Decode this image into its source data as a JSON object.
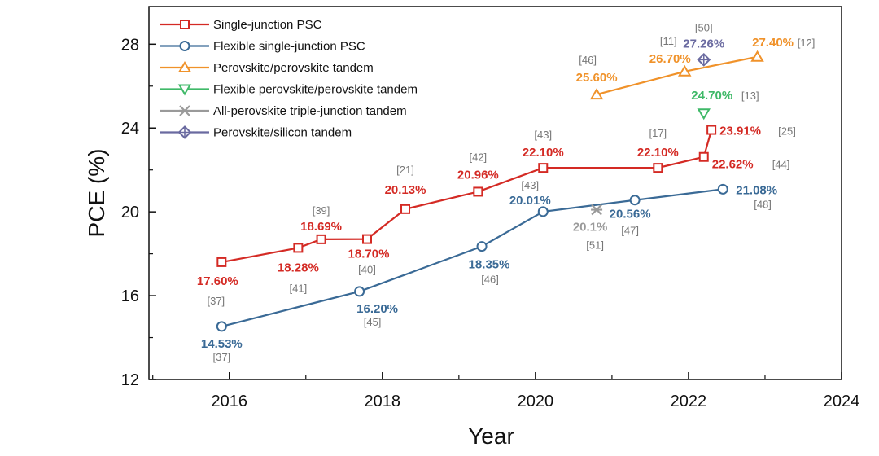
{
  "chart_data": {
    "type": "line",
    "xlabel": "Year",
    "ylabel": "PCE (%)",
    "xlim": [
      2014.95,
      2024
    ],
    "ylim": [
      12,
      29.8
    ],
    "x_ticks": [
      2016,
      2018,
      2020,
      2022,
      2024
    ],
    "x_tick_labels": [
      "2016",
      "2018",
      "2020",
      "2022",
      "2024"
    ],
    "y_ticks": [
      12,
      16,
      20,
      24,
      28
    ],
    "y_tick_labels": [
      "12",
      "16",
      "20",
      "24",
      "28"
    ],
    "legend_position": "top-left",
    "series": [
      {
        "name": "Single-junction PSC",
        "color": "#d42a24",
        "marker": "square",
        "line": true,
        "points": [
          {
            "x": 2015.9,
            "y": 17.6,
            "label": "17.60%",
            "ref": "[37]"
          },
          {
            "x": 2016.9,
            "y": 18.28,
            "label": "18.28%",
            "ref": "[41]"
          },
          {
            "x": 2017.2,
            "y": 18.69,
            "label": "18.69%",
            "ref": "[39]"
          },
          {
            "x": 2017.8,
            "y": 18.7,
            "label": "18.70%",
            "ref": "[40]"
          },
          {
            "x": 2018.3,
            "y": 20.13,
            "label": "20.13%",
            "ref": "[21]"
          },
          {
            "x": 2019.25,
            "y": 20.96,
            "label": "20.96%",
            "ref": "[42]"
          },
          {
            "x": 2020.1,
            "y": 22.1,
            "label": "22.10%",
            "ref": "[43]"
          },
          {
            "x": 2021.6,
            "y": 22.1,
            "label": "22.10%",
            "ref": "[17]"
          },
          {
            "x": 2022.2,
            "y": 22.62,
            "label": "22.62%",
            "ref": "[44]"
          },
          {
            "x": 2022.3,
            "y": 23.91,
            "label": "23.91%",
            "ref": "[25]"
          }
        ]
      },
      {
        "name": "Flexible single-junction PSC",
        "color": "#3a6a96",
        "marker": "circle",
        "line": true,
        "points": [
          {
            "x": 2015.9,
            "y": 14.53,
            "label": "14.53%",
            "ref": "[37]"
          },
          {
            "x": 2017.7,
            "y": 16.2,
            "label": "16.20%",
            "ref": "[45]"
          },
          {
            "x": 2019.3,
            "y": 18.35,
            "label": "18.35%",
            "ref": "[46]"
          },
          {
            "x": 2020.1,
            "y": 20.01,
            "label": "20.01%",
            "ref": "[43]"
          },
          {
            "x": 2021.3,
            "y": 20.56,
            "label": "20.56%",
            "ref": "[47]"
          },
          {
            "x": 2022.45,
            "y": 21.08,
            "label": "21.08%",
            "ref": "[48]"
          }
        ]
      },
      {
        "name": "Perovskite/perovskite tandem",
        "color": "#f0922a",
        "marker": "triangle-up",
        "line": true,
        "points": [
          {
            "x": 2020.8,
            "y": 25.6,
            "label": "25.60%",
            "ref": "[46]"
          },
          {
            "x": 2021.95,
            "y": 26.7,
            "label": "26.70%",
            "ref": "[11]"
          },
          {
            "x": 2022.9,
            "y": 27.4,
            "label": "27.40%",
            "ref": "[12]"
          }
        ]
      },
      {
        "name": "Flexible perovskite/perovskite tandem",
        "color": "#3fb968",
        "marker": "triangle-down",
        "line": false,
        "points": [
          {
            "x": 2022.2,
            "y": 24.7,
            "label": "24.70%",
            "ref": "[13]"
          }
        ]
      },
      {
        "name": "All-perovskite triple-junction tandem",
        "color": "#9a9a9a",
        "marker": "star-x",
        "line": false,
        "points": [
          {
            "x": 2020.8,
            "y": 20.1,
            "label": "20.1%",
            "ref": "[51]"
          }
        ]
      },
      {
        "name": "Perovskite/silicon tandem",
        "color": "#6a6aa0",
        "marker": "diamond-plus",
        "line": false,
        "points": [
          {
            "x": 2022.2,
            "y": 27.26,
            "label": "27.26%",
            "ref": "[50]"
          }
        ]
      }
    ]
  }
}
